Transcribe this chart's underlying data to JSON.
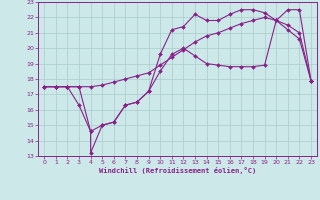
{
  "xlabel": "Windchill (Refroidissement éolien,°C)",
  "xlim": [
    -0.5,
    23.5
  ],
  "ylim": [
    13,
    23
  ],
  "xticks": [
    0,
    1,
    2,
    3,
    4,
    5,
    6,
    7,
    8,
    9,
    10,
    11,
    12,
    13,
    14,
    15,
    16,
    17,
    18,
    19,
    20,
    21,
    22,
    23
  ],
  "yticks": [
    13,
    14,
    15,
    16,
    17,
    18,
    19,
    20,
    21,
    22,
    23
  ],
  "bg_color": "#cce8e8",
  "grid_color": "#aacccc",
  "line_color": "#882288",
  "line1_x": [
    0,
    1,
    2,
    3,
    4,
    5,
    6,
    7,
    8,
    9,
    10,
    11,
    12,
    13,
    14,
    15,
    16,
    17,
    18,
    19,
    20,
    21,
    22,
    23
  ],
  "line1_y": [
    17.5,
    17.5,
    17.5,
    16.3,
    14.6,
    15.0,
    15.2,
    16.3,
    16.5,
    17.2,
    19.6,
    21.2,
    21.4,
    22.2,
    21.8,
    21.8,
    22.2,
    22.5,
    22.5,
    22.3,
    21.8,
    21.2,
    20.6,
    17.9
  ],
  "line2_x": [
    0,
    1,
    2,
    3,
    4,
    5,
    6,
    7,
    8,
    9,
    10,
    11,
    12,
    13,
    14,
    15,
    16,
    17,
    18,
    19,
    20,
    21,
    22,
    23
  ],
  "line2_y": [
    17.5,
    17.5,
    17.5,
    17.5,
    17.5,
    17.6,
    17.8,
    18.0,
    18.2,
    18.4,
    18.9,
    19.4,
    19.9,
    20.4,
    20.8,
    21.0,
    21.3,
    21.6,
    21.8,
    22.0,
    21.8,
    21.5,
    21.0,
    17.9
  ],
  "line3_x": [
    0,
    1,
    2,
    3,
    4,
    4,
    5,
    6,
    7,
    8,
    9,
    10,
    11,
    12,
    13,
    14,
    15,
    16,
    17,
    18,
    19,
    20,
    21,
    22,
    23
  ],
  "line3_y": [
    17.5,
    17.5,
    17.5,
    17.5,
    14.6,
    13.2,
    15.0,
    15.2,
    16.3,
    16.5,
    17.2,
    18.5,
    19.6,
    20.0,
    19.5,
    19.0,
    18.9,
    18.8,
    18.8,
    18.8,
    18.9,
    21.8,
    22.5,
    22.5,
    17.9
  ]
}
